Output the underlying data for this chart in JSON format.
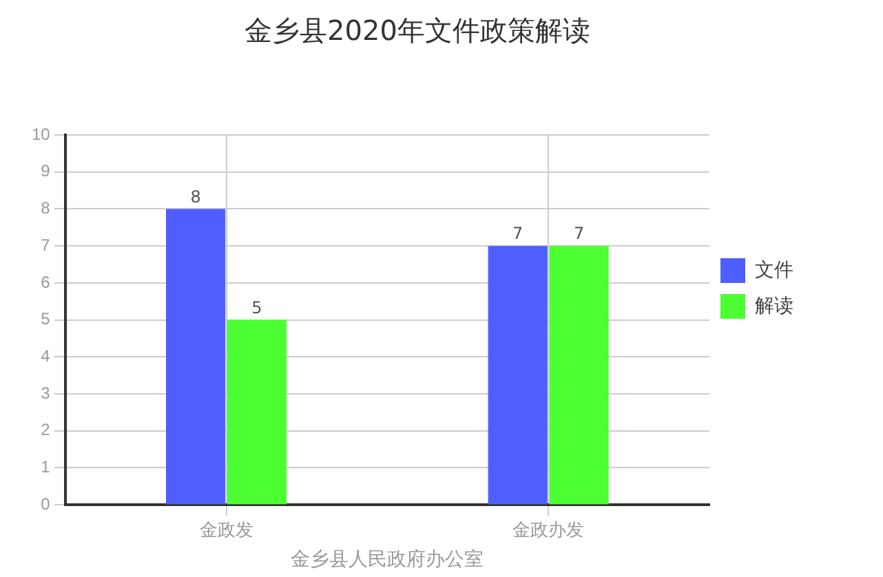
{
  "chart_data": {
    "type": "bar",
    "title": "金乡县2020年文件政策解读",
    "xlabel": "金乡县人民政府办公室",
    "categories": [
      "金政发",
      "金政办发"
    ],
    "series": [
      {
        "name": "文件",
        "color": "#4f5fff",
        "values": [
          8,
          7
        ]
      },
      {
        "name": "解读",
        "color": "#4cff33",
        "values": [
          5,
          7
        ]
      }
    ],
    "ylim": [
      0,
      10
    ],
    "yticks": [
      0,
      1,
      2,
      3,
      4,
      5,
      6,
      7,
      8,
      9,
      10
    ],
    "grid": true,
    "legend": "right",
    "data_labels": true
  }
}
